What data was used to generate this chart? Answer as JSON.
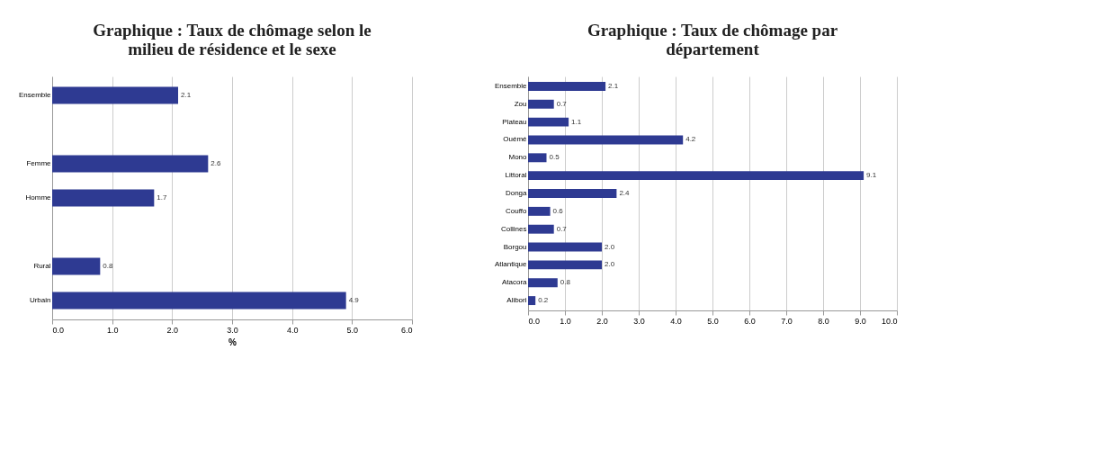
{
  "chart_data": [
    {
      "type": "bar",
      "orientation": "horizontal",
      "title": "Graphique : Taux de chômage selon le milieu de résidence et le sexe",
      "xlabel": "%",
      "categories": [
        "Ensemble",
        null,
        "Femme",
        "Homme",
        null,
        "Rural",
        "Urbain"
      ],
      "values": [
        2.1,
        null,
        2.6,
        1.7,
        null,
        0.8,
        4.9
      ],
      "color": "#2e3a92",
      "xlim": [
        0,
        6
      ],
      "xticks": [
        {
          "value": 0,
          "label": "0.0"
        },
        {
          "value": 1,
          "label": "1.0"
        },
        {
          "value": 2,
          "label": "2.0"
        },
        {
          "value": 3,
          "label": "3.0"
        },
        {
          "value": 4,
          "label": "4.0"
        },
        {
          "value": 5,
          "label": "5.0"
        },
        {
          "value": 6,
          "label": "6.0"
        }
      ],
      "grid": "x",
      "value_labels": [
        "2.1",
        null,
        "2.6",
        "1.7",
        null,
        "0.8",
        "4.9"
      ]
    },
    {
      "type": "bar",
      "orientation": "horizontal",
      "title": "Graphique : Taux de chômage par département",
      "categories": [
        "Ensemble",
        "Zou",
        "Plateau",
        "Ouémé",
        "Mono",
        "Littoral",
        "Donga",
        "Couffo",
        "Collines",
        "Borgou",
        "Atlantique",
        "Atacora",
        "Alibori"
      ],
      "values": [
        2.1,
        0.7,
        1.1,
        4.2,
        0.5,
        9.1,
        2.4,
        0.6,
        0.7,
        2.0,
        2.0,
        0.8,
        0.2
      ],
      "color": "#2e3a92",
      "xlim": [
        0,
        10
      ],
      "xticks": [
        {
          "value": 0,
          "label": "0.0"
        },
        {
          "value": 1,
          "label": "1.0"
        },
        {
          "value": 2,
          "label": "2.0"
        },
        {
          "value": 3,
          "label": "3.0"
        },
        {
          "value": 4,
          "label": "4.0"
        },
        {
          "value": 5,
          "label": "5.0"
        },
        {
          "value": 6,
          "label": "6.0"
        },
        {
          "value": 7,
          "label": "7.0"
        },
        {
          "value": 8,
          "label": "8.0"
        },
        {
          "value": 9,
          "label": "9.0"
        },
        {
          "value": 10,
          "label": "10.0"
        }
      ],
      "grid": "x",
      "value_labels": [
        "2.1",
        "0.7",
        "1.1",
        "4.2",
        "0.5",
        "9.1",
        "2.4",
        "0.6",
        "0.7",
        "2.0",
        "2.0",
        "0.8",
        "0.2"
      ]
    }
  ]
}
